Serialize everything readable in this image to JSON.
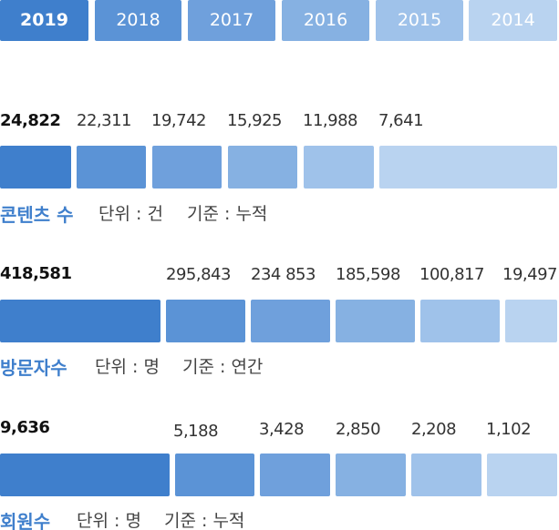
{
  "tabs": [
    "2019",
    "2018",
    "2017",
    "2016",
    "2015",
    "2014"
  ],
  "sections": [
    {
      "values": [
        "24,822",
        "22,311",
        "19,742",
        "15,925",
        "11,988",
        "7,641"
      ],
      "title": "콘텐츠 수",
      "unit": "단위 : 건",
      "basis": "기준 : 누적"
    },
    {
      "values": [
        "418,581",
        "295,843",
        "234 853",
        "185,598",
        "100,817",
        "19,497"
      ],
      "title": "방문자수",
      "unit": "단위 : 명",
      "basis": "기준 : 연간"
    },
    {
      "values": [
        "9,636",
        "5,188",
        "3,428",
        "2,850",
        "2,208",
        "1,102"
      ],
      "title": "회원수",
      "unit": "단위 : 명",
      "basis": "기준 : 누적"
    }
  ]
}
